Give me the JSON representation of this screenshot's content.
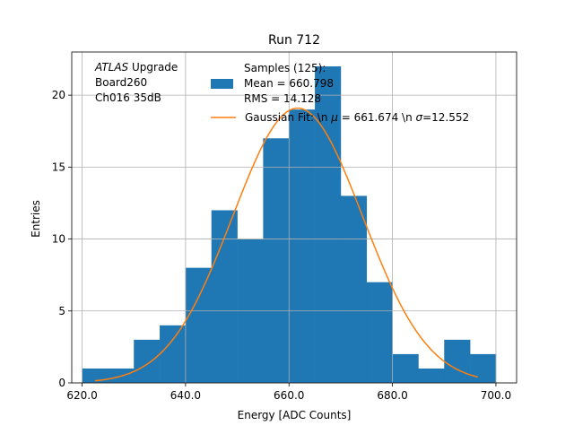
{
  "chart_data": {
    "type": "bar",
    "title": "Run 712",
    "xlabel": "Energy [ADC Counts]",
    "ylabel": "Entries",
    "xlim": [
      618,
      704
    ],
    "ylim": [
      0,
      23
    ],
    "grid": true,
    "x_ticks": [
      620,
      640,
      660,
      680,
      700
    ],
    "x_tick_labels": [
      "620.0",
      "640.0",
      "660.0",
      "680.0",
      "700.0"
    ],
    "y_ticks": [
      0,
      5,
      10,
      15,
      20
    ],
    "y_tick_labels": [
      "0",
      "5",
      "10",
      "15",
      "20"
    ],
    "annotation_lines": [
      {
        "italic": "ATLAS",
        "text": " Upgrade"
      },
      {
        "italic": "",
        "text": " Board260"
      },
      {
        "italic": "",
        "text": " Ch016 35dB"
      }
    ],
    "histogram": {
      "bin_edges": [
        620,
        625,
        630,
        635,
        640,
        645,
        650,
        655,
        660,
        665,
        670,
        675,
        680,
        685,
        690,
        695,
        700
      ],
      "counts": [
        1,
        1,
        3,
        4,
        8,
        12,
        10,
        17,
        19,
        22,
        13,
        7,
        2,
        1,
        3,
        2
      ],
      "color": "#1f77b4",
      "legend_label": [
        "Samples (125):",
        " Mean = 660.798",
        " RMS = 14.128"
      ]
    },
    "fit": {
      "type": "gaussian",
      "mu": 661.674,
      "sigma": 12.552,
      "amplitude": 19.1,
      "x_range": [
        622.5,
        696.5
      ],
      "color": "#ff7f0e",
      "legend_label_parts": [
        "Gaussian Fit: \\n ",
        "μ",
        " = 661.674 \\n ",
        "σ",
        "=12.552"
      ]
    },
    "legend_location": "upper-right"
  }
}
